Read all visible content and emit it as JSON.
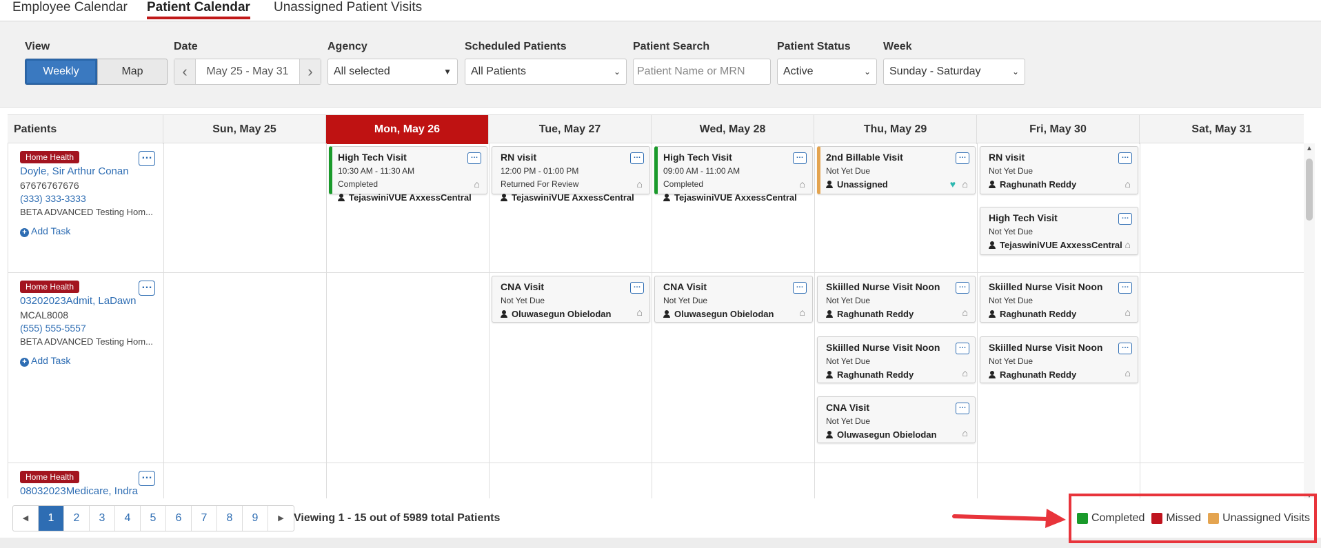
{
  "tabs": [
    {
      "label": "Employee Calendar",
      "active": false
    },
    {
      "label": "Patient Calendar",
      "active": true
    },
    {
      "label": "Unassigned Patient Visits",
      "active": false
    }
  ],
  "filters": {
    "view_label": "View",
    "view_weekly": "Weekly",
    "view_map": "Map",
    "date_label": "Date",
    "date_range": "May 25 - May 31",
    "agency_label": "Agency",
    "agency_value": "All selected",
    "scheduled_label": "Scheduled Patients",
    "scheduled_value": "All Patients",
    "search_label": "Patient Search",
    "search_placeholder": "Patient Name or MRN",
    "status_label": "Patient Status",
    "status_value": "Active",
    "week_label": "Week",
    "week_value": "Sunday - Saturday"
  },
  "columns": {
    "patients": "Patients",
    "days": [
      "Sun, May 25",
      "Mon, May 26",
      "Tue, May 27",
      "Wed, May 28",
      "Thu, May 29",
      "Fri, May 30",
      "Sat, May 31"
    ],
    "today_index": 1
  },
  "patients": [
    {
      "badge": "Home Health",
      "name": "Doyle, Sir Arthur Conan",
      "mrn": "67676767676",
      "phone": "(333) 333-3333",
      "agency": "BETA ADVANCED Testing Hom...",
      "add_task": "Add Task"
    },
    {
      "badge": "Home Health",
      "name": "03202023Admit, LaDawn",
      "mrn": "MCAL8008",
      "phone": "(555) 555-5557",
      "agency": "BETA ADVANCED Testing Hom...",
      "add_task": "Add Task"
    },
    {
      "badge": "Home Health",
      "name": "08032023Medicare, Indra"
    }
  ],
  "visits": {
    "r0_mon": {
      "title": "High Tech Visit",
      "time": "10:30 AM - 11:30 AM",
      "status": "Completed",
      "worker": "TejaswiniVUE AxxessCentral"
    },
    "r0_tue": {
      "title": "RN visit",
      "time": "12:00 PM - 01:00 PM",
      "status": "Returned For Review",
      "worker": "TejaswiniVUE AxxessCentral"
    },
    "r0_wed": {
      "title": "High Tech Visit",
      "time": "09:00 AM - 11:00 AM",
      "status": "Completed",
      "worker": "TejaswiniVUE AxxessCentral"
    },
    "r0_thu": {
      "title": "2nd Billable Visit",
      "status": "Not Yet Due",
      "worker": "Unassigned"
    },
    "r0_fri_a": {
      "title": "RN visit",
      "status": "Not Yet Due",
      "worker": "Raghunath Reddy"
    },
    "r0_fri_b": {
      "title": "High Tech Visit",
      "status": "Not Yet Due",
      "worker": "TejaswiniVUE AxxessCentral"
    },
    "r1_tue": {
      "title": "CNA Visit",
      "status": "Not Yet Due",
      "worker": "Oluwasegun Obielodan"
    },
    "r1_wed": {
      "title": "CNA Visit",
      "status": "Not Yet Due",
      "worker": "Oluwasegun Obielodan"
    },
    "r1_thu_a": {
      "title": "Skiilled Nurse Visit Noon",
      "status": "Not Yet Due",
      "worker": "Raghunath Reddy"
    },
    "r1_thu_b": {
      "title": "Skiilled Nurse Visit Noon",
      "status": "Not Yet Due",
      "worker": "Raghunath Reddy"
    },
    "r1_thu_c": {
      "title": "CNA Visit",
      "status": "Not Yet Due",
      "worker": "Oluwasegun Obielodan"
    },
    "r1_fri_a": {
      "title": "Skiilled Nurse Visit Noon",
      "status": "Not Yet Due",
      "worker": "Raghunath Reddy"
    },
    "r1_fri_b": {
      "title": "Skiilled Nurse Visit Noon",
      "status": "Not Yet Due",
      "worker": "Raghunath Reddy"
    }
  },
  "pagination": {
    "pages": [
      "1",
      "2",
      "3",
      "4",
      "5",
      "6",
      "7",
      "8",
      "9"
    ],
    "current": "1",
    "viewing": "Viewing 1 - 15 out of 5989 total Patients"
  },
  "legend": [
    {
      "label": "Completed",
      "color": "#1a9a2b"
    },
    {
      "label": "Missed",
      "color": "#c0141f"
    },
    {
      "label": "Unassigned Visits",
      "color": "#e4a450"
    }
  ],
  "colors": {
    "accent": "#2e6db3",
    "today": "#bf1212",
    "badge": "#a3141f",
    "annotation": "#e8343b"
  }
}
